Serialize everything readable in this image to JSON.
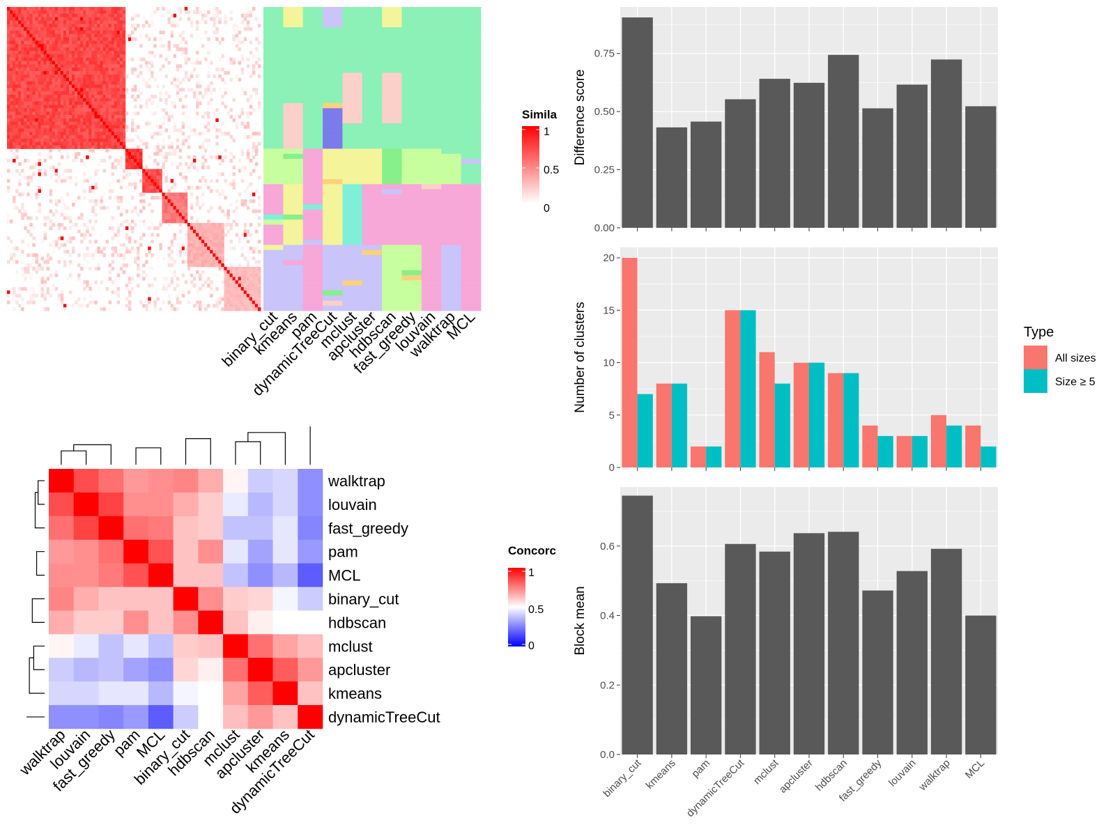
{
  "colors": {
    "panel_bg": "#EBEBEB",
    "grid": "#FFFFFF",
    "bar": "#595959",
    "all_sizes": "#F8766D",
    "size_ge5": "#00BFC4",
    "sim_high": "#FF0000",
    "sim_low": "#FFFFFF",
    "conc_low": "#0000FF",
    "conc_mid": "#FFFFFF",
    "conc_high": "#FF0000",
    "cluster_green": "#8BF1B7",
    "cluster_pink": "#F7A7D8",
    "cluster_yellow": "#F4F49A",
    "cluster_lime": "#C8FF9E",
    "cluster_lavender": "#C9C4FA",
    "cluster_peach": "#FAD0C8",
    "cluster_blue": "#7B7BEC",
    "cluster_green2": "#87F08A",
    "cluster_teal": "#7FF0D7",
    "cluster_gold": "#FAD27B"
  },
  "similarity_legend": {
    "title": "Simila",
    "ticks": [
      "1",
      "0.5",
      "0"
    ]
  },
  "concordance_legend": {
    "title": "Concorc",
    "ticks": [
      "1",
      "0.5",
      "0"
    ]
  },
  "chart_data": [
    {
      "type": "heatmap",
      "name": "similarity",
      "description_free": true,
      "blocks": [
        {
          "start": 0.0,
          "end": 0.46,
          "level": 0.82
        },
        {
          "start": 0.46,
          "end": 0.53,
          "level": 0.9
        },
        {
          "start": 0.53,
          "end": 0.61,
          "level": 0.8
        },
        {
          "start": 0.61,
          "end": 0.71,
          "level": 0.6
        },
        {
          "start": 0.71,
          "end": 0.85,
          "level": 0.35
        },
        {
          "start": 0.85,
          "end": 1.0,
          "level": 0.3
        }
      ]
    },
    {
      "type": "heatmap",
      "name": "cluster_assignment",
      "x_labels": [
        "binary_cut",
        "kmeans",
        "pam",
        "dynamicTreeCut",
        "mclust",
        "apcluster",
        "hdbscan",
        "fast_greedy",
        "louvain",
        "walktrap",
        "MCL"
      ]
    },
    {
      "type": "heatmap",
      "name": "concordance",
      "labels": [
        "walktrap",
        "louvain",
        "fast_greedy",
        "pam",
        "MCL",
        "binary_cut",
        "hdbscan",
        "mclust",
        "apcluster",
        "kmeans",
        "dynamicTreeCut"
      ],
      "matrix": [
        [
          1.0,
          0.85,
          0.78,
          0.7,
          0.72,
          0.74,
          0.66,
          0.52,
          0.4,
          0.42,
          0.28
        ],
        [
          0.85,
          1.0,
          0.87,
          0.72,
          0.72,
          0.66,
          0.6,
          0.46,
          0.36,
          0.42,
          0.28
        ],
        [
          0.78,
          0.87,
          1.0,
          0.78,
          0.76,
          0.62,
          0.6,
          0.38,
          0.38,
          0.45,
          0.26
        ],
        [
          0.7,
          0.72,
          0.78,
          1.0,
          0.84,
          0.62,
          0.72,
          0.45,
          0.32,
          0.45,
          0.3
        ],
        [
          0.72,
          0.72,
          0.76,
          0.84,
          1.0,
          0.62,
          0.62,
          0.38,
          0.28,
          0.36,
          0.18
        ],
        [
          0.74,
          0.66,
          0.62,
          0.62,
          0.62,
          1.0,
          0.72,
          0.6,
          0.58,
          0.48,
          0.4
        ],
        [
          0.66,
          0.6,
          0.6,
          0.72,
          0.62,
          0.72,
          1.0,
          0.62,
          0.53,
          0.5,
          0.5
        ],
        [
          0.52,
          0.46,
          0.38,
          0.45,
          0.38,
          0.6,
          0.62,
          1.0,
          0.78,
          0.68,
          0.63
        ],
        [
          0.4,
          0.36,
          0.38,
          0.32,
          0.28,
          0.58,
          0.53,
          0.78,
          1.0,
          0.82,
          0.7
        ],
        [
          0.42,
          0.42,
          0.45,
          0.45,
          0.36,
          0.48,
          0.5,
          0.68,
          0.82,
          1.0,
          0.62
        ],
        [
          0.28,
          0.28,
          0.26,
          0.3,
          0.18,
          0.4,
          0.5,
          0.63,
          0.7,
          0.62,
          1.0
        ]
      ]
    },
    {
      "type": "bar",
      "name": "difference",
      "categories": [
        "binary_cut",
        "kmeans",
        "pam",
        "dynamicTreeCut",
        "mclust",
        "apcluster",
        "hdbscan",
        "fast_greedy",
        "louvain",
        "walktrap",
        "MCL"
      ],
      "values": [
        0.905,
        0.432,
        0.457,
        0.553,
        0.641,
        0.624,
        0.744,
        0.514,
        0.616,
        0.724,
        0.523
      ],
      "ylabel": "Difference score",
      "ylim": [
        0,
        0.95
      ],
      "yticks": [
        "0.00",
        "0.25",
        "0.50",
        "0.75"
      ],
      "grid": true
    },
    {
      "type": "bar",
      "name": "clusters",
      "categories": [
        "binary_cut",
        "kmeans",
        "pam",
        "dynamicTreeCut",
        "mclust",
        "apcluster",
        "hdbscan",
        "fast_greedy",
        "louvain",
        "walktrap",
        "MCL"
      ],
      "series": [
        {
          "name": "All sizes",
          "values": [
            20,
            8,
            2,
            15,
            11,
            10,
            9,
            4,
            3,
            5,
            4
          ]
        },
        {
          "name": "Size ≥ 5",
          "values": [
            7,
            8,
            2,
            15,
            8,
            10,
            9,
            3,
            3,
            4,
            2
          ]
        }
      ],
      "ylabel": "Number of clusters",
      "ylim": [
        0,
        21
      ],
      "yticks": [
        "0",
        "5",
        "10",
        "15",
        "20"
      ],
      "legend_title": "Type",
      "legend_position": "right",
      "grid": true
    },
    {
      "type": "bar",
      "name": "blockmean",
      "categories": [
        "binary_cut",
        "kmeans",
        "pam",
        "dynamicTreeCut",
        "mclust",
        "apcluster",
        "hdbscan",
        "fast_greedy",
        "louvain",
        "walktrap",
        "MCL"
      ],
      "values": [
        0.745,
        0.493,
        0.398,
        0.606,
        0.584,
        0.637,
        0.641,
        0.472,
        0.528,
        0.592,
        0.4
      ],
      "ylabel": "Block mean",
      "ylim": [
        0,
        0.77
      ],
      "yticks": [
        "0.0",
        "0.2",
        "0.4",
        "0.6"
      ],
      "grid": true
    }
  ]
}
